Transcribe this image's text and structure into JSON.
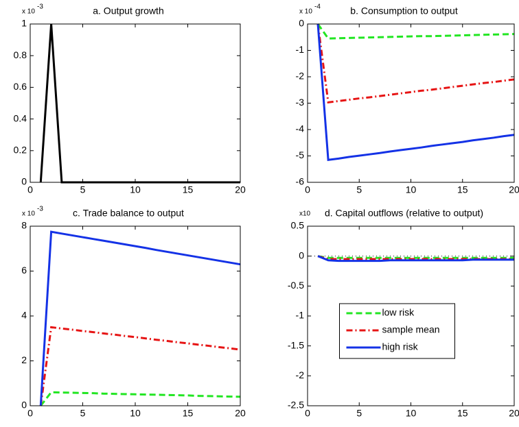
{
  "chart_data": [
    {
      "type": "line",
      "title": "a. Output growth",
      "y_multiplier": "x 10",
      "y_exponent": "-3",
      "x": [
        1,
        2,
        3,
        4,
        5,
        6,
        7,
        8,
        9,
        10,
        11,
        12,
        13,
        14,
        15,
        16,
        17,
        18,
        19,
        20
      ],
      "series": [
        {
          "color": "#000000",
          "line_style": "-",
          "values": [
            0,
            1,
            0,
            0,
            0,
            0,
            0,
            0,
            0,
            0,
            0,
            0,
            0,
            0,
            0,
            0,
            0,
            0,
            0,
            0
          ]
        }
      ],
      "xlim": [
        0,
        20
      ],
      "xticks": [
        0,
        5,
        10,
        15,
        20
      ],
      "ylim": [
        0,
        1
      ],
      "yticks": [
        0,
        0.2,
        0.4,
        0.6,
        0.8,
        1
      ]
    },
    {
      "type": "line",
      "title": "b. Consumption to output",
      "y_multiplier": "x 10",
      "y_exponent": "-4",
      "x": [
        1,
        2,
        3,
        4,
        5,
        6,
        7,
        8,
        9,
        10,
        11,
        12,
        13,
        14,
        15,
        16,
        17,
        18,
        19,
        20
      ],
      "series": [
        {
          "color": "#22e622",
          "line_style": "--",
          "values": [
            0,
            -0.55,
            -0.54,
            -0.53,
            -0.52,
            -0.51,
            -0.5,
            -0.49,
            -0.48,
            -0.47,
            -0.46,
            -0.46,
            -0.45,
            -0.44,
            -0.43,
            -0.42,
            -0.41,
            -0.4,
            -0.39,
            -0.38
          ]
        },
        {
          "color": "#e61414",
          "line_style": "-.",
          "values": [
            0,
            -2.97,
            -2.92,
            -2.87,
            -2.82,
            -2.78,
            -2.73,
            -2.68,
            -2.63,
            -2.58,
            -2.53,
            -2.49,
            -2.44,
            -2.39,
            -2.34,
            -2.29,
            -2.24,
            -2.2,
            -2.15,
            -2.1
          ]
        },
        {
          "color": "#1432e6",
          "line_style": "-",
          "values": [
            0,
            -5.15,
            -5.1,
            -5.04,
            -4.99,
            -4.94,
            -4.89,
            -4.83,
            -4.78,
            -4.73,
            -4.68,
            -4.62,
            -4.57,
            -4.52,
            -4.47,
            -4.41,
            -4.36,
            -4.31,
            -4.25,
            -4.2
          ]
        }
      ],
      "xlim": [
        0,
        20
      ],
      "xticks": [
        0,
        5,
        10,
        15,
        20
      ],
      "ylim": [
        -6,
        0
      ],
      "yticks": [
        -6,
        -5,
        -4,
        -3,
        -2,
        -1,
        0
      ]
    },
    {
      "type": "line",
      "title": "c. Trade balance to output",
      "y_multiplier": "x 10",
      "y_exponent": "-3",
      "x": [
        1,
        2,
        3,
        4,
        5,
        6,
        7,
        8,
        9,
        10,
        11,
        12,
        13,
        14,
        15,
        16,
        17,
        18,
        19,
        20
      ],
      "series": [
        {
          "color": "#22e622",
          "line_style": "--",
          "values": [
            0,
            0.6,
            0.59,
            0.58,
            0.57,
            0.56,
            0.54,
            0.53,
            0.52,
            0.51,
            0.5,
            0.49,
            0.48,
            0.47,
            0.46,
            0.44,
            0.43,
            0.42,
            0.41,
            0.4
          ]
        },
        {
          "color": "#e61414",
          "line_style": "-.",
          "values": [
            0,
            3.5,
            3.44,
            3.39,
            3.33,
            3.28,
            3.22,
            3.17,
            3.11,
            3.06,
            3.0,
            2.94,
            2.89,
            2.83,
            2.78,
            2.72,
            2.67,
            2.61,
            2.56,
            2.5
          ]
        },
        {
          "color": "#1432e6",
          "line_style": "-",
          "values": [
            0,
            7.75,
            7.67,
            7.59,
            7.51,
            7.43,
            7.35,
            7.27,
            7.19,
            7.11,
            7.03,
            6.94,
            6.86,
            6.78,
            6.7,
            6.62,
            6.54,
            6.46,
            6.38,
            6.3
          ]
        }
      ],
      "xlim": [
        0,
        20
      ],
      "xticks": [
        0,
        5,
        10,
        15,
        20
      ],
      "ylim": [
        0,
        8
      ],
      "yticks": [
        0,
        2,
        4,
        6,
        8
      ]
    },
    {
      "type": "line",
      "title": "d. Capital outflows (relative to output)",
      "y_multiplier": "x10",
      "x": [
        1,
        2,
        3,
        4,
        5,
        6,
        7,
        8,
        9,
        10,
        11,
        12,
        13,
        14,
        15,
        16,
        17,
        18,
        19,
        20
      ],
      "reference_line": 0,
      "legend": "center",
      "series": [
        {
          "name": "low risk",
          "color": "#22e622",
          "line_style": "--",
          "values": [
            0,
            -0.03,
            -0.03,
            -0.03,
            -0.03,
            -0.03,
            -0.03,
            -0.03,
            -0.03,
            -0.03,
            -0.03,
            -0.03,
            -0.03,
            -0.03,
            -0.03,
            -0.03,
            -0.03,
            -0.03,
            -0.03,
            -0.03
          ]
        },
        {
          "name": "sample mean",
          "color": "#e61414",
          "line_style": "-.",
          "values": [
            0,
            -0.05,
            -0.05,
            -0.05,
            -0.05,
            -0.05,
            -0.05,
            -0.05,
            -0.05,
            -0.05,
            -0.05,
            -0.05,
            -0.05,
            -0.05,
            -0.05,
            -0.05,
            -0.05,
            -0.05,
            -0.05,
            -0.05
          ]
        },
        {
          "name": "high risk",
          "color": "#1432e6",
          "line_style": "-",
          "values": [
            0,
            -0.07,
            -0.08,
            -0.08,
            -0.08,
            -0.08,
            -0.08,
            -0.07,
            -0.07,
            -0.07,
            -0.07,
            -0.07,
            -0.07,
            -0.07,
            -0.07,
            -0.06,
            -0.06,
            -0.06,
            -0.06,
            -0.06
          ]
        }
      ],
      "xlim": [
        0,
        20
      ],
      "xticks": [
        0,
        5,
        10,
        15,
        20
      ],
      "ylim": [
        -2.5,
        0.5
      ],
      "yticks": [
        -2.5,
        -2,
        -1.5,
        -1,
        -0.5,
        0,
        0.5
      ]
    }
  ]
}
